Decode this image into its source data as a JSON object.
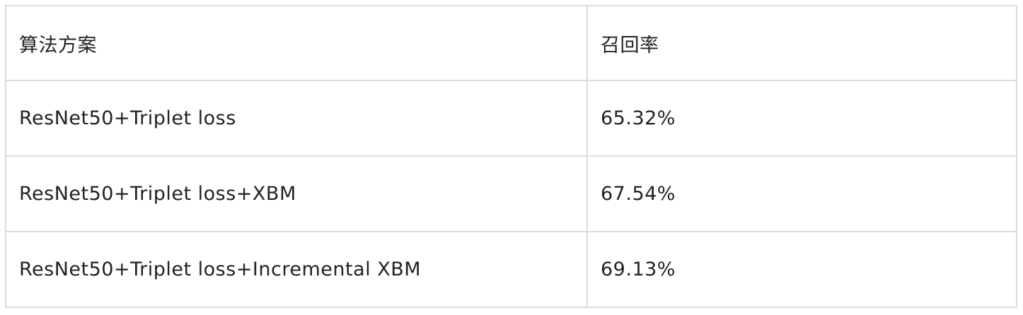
{
  "table": {
    "headers": {
      "method": "算法方案",
      "recall": "召回率"
    },
    "rows": [
      {
        "method": "ResNet50+Triplet loss",
        "recall": "65.32%"
      },
      {
        "method": "ResNet50+Triplet loss+XBM",
        "recall": "67.54%"
      },
      {
        "method": "ResNet50+Triplet loss+Incremental XBM",
        "recall": "69.13%"
      }
    ]
  }
}
